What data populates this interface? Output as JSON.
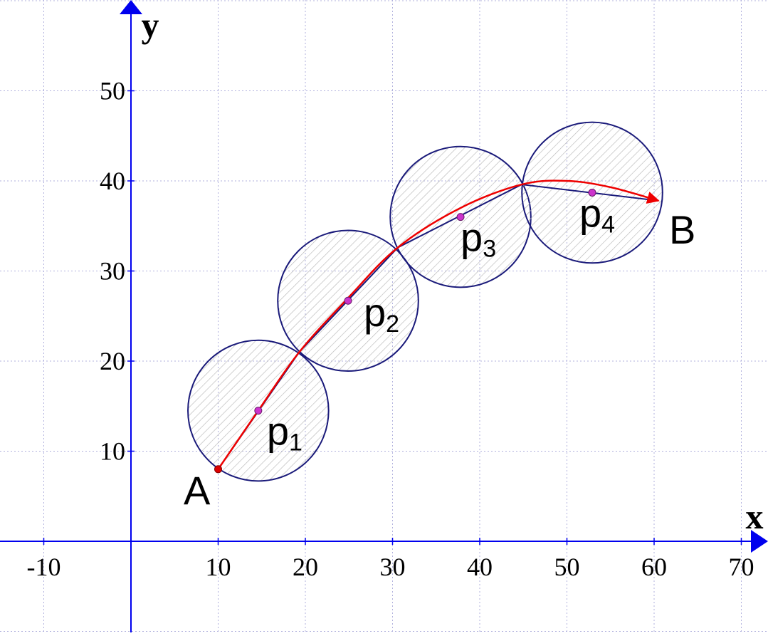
{
  "axes": {
    "x_label": "x",
    "y_label": "y",
    "x_range": [
      -20,
      70
    ],
    "y_range": [
      -10,
      60
    ],
    "x_ticks": [
      {
        "value": -10,
        "label": "-10"
      },
      {
        "value": 10,
        "label": "10"
      },
      {
        "value": 20,
        "label": "20"
      },
      {
        "value": 30,
        "label": "30"
      },
      {
        "value": 40,
        "label": "40"
      },
      {
        "value": 50,
        "label": "50"
      },
      {
        "value": 60,
        "label": "60"
      },
      {
        "value": 70,
        "label": "70"
      }
    ],
    "y_ticks": [
      {
        "value": 10,
        "label": "10"
      },
      {
        "value": 20,
        "label": "20"
      },
      {
        "value": 30,
        "label": "30"
      },
      {
        "value": 40,
        "label": "40"
      },
      {
        "value": 50,
        "label": "50"
      }
    ],
    "grid": true,
    "axis_color": "#0000ee",
    "grid_color": "#b0b0dd"
  },
  "points": {
    "A": {
      "label": "A",
      "x": 10,
      "y": 8
    },
    "B": {
      "label": "B",
      "x": 60.5,
      "y": 37.8
    }
  },
  "circles": [
    {
      "name": "p",
      "sub": "1",
      "cx": 14.6,
      "cy": 14.5,
      "r": 8
    },
    {
      "name": "p",
      "sub": "2",
      "cx": 24.9,
      "cy": 26.7,
      "r": 8
    },
    {
      "name": "p",
      "sub": "3",
      "cx": 37.8,
      "cy": 36,
      "r": 8
    },
    {
      "name": "p",
      "sub": "4",
      "cx": 52.9,
      "cy": 38.7,
      "r": 8
    }
  ],
  "polyline": [
    [
      10,
      8
    ],
    [
      19.3,
      21
    ],
    [
      30.6,
      32.6
    ],
    [
      44.8,
      39.6
    ],
    [
      60.5,
      37.8
    ]
  ],
  "curve": [
    [
      10,
      8
    ],
    [
      14.6,
      14.5
    ],
    [
      19.3,
      21
    ],
    [
      24.9,
      27
    ],
    [
      30.6,
      32.6
    ],
    [
      37.8,
      37
    ],
    [
      44.8,
      39.6
    ],
    [
      50,
      40
    ],
    [
      55,
      39.3
    ],
    [
      60.5,
      37.8
    ]
  ],
  "colors": {
    "circle_stroke": "#1a1a7a",
    "hatch": "#b8b8b8",
    "polyline": "#1a1a7a",
    "curve": "#ee0000",
    "center_dot": "#cc33cc",
    "start_dot": "#dd0000"
  }
}
